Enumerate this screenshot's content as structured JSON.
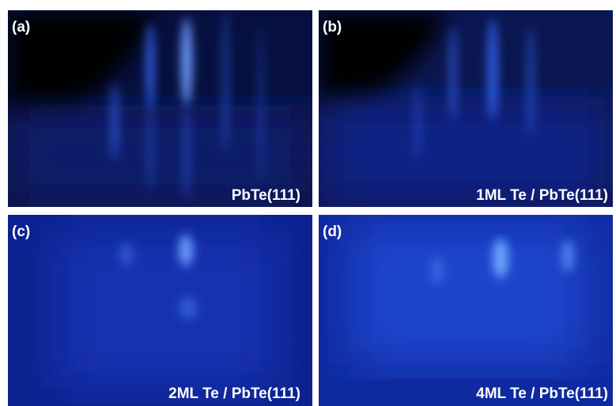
{
  "panels": [
    {
      "label": "(a)",
      "caption": "PbTe(111)"
    },
    {
      "label": "(b)",
      "caption": "1ML Te / PbTe(111)"
    },
    {
      "label": "(c)",
      "caption": "2ML Te / PbTe(111)"
    },
    {
      "label": "(d)",
      "caption": "4ML Te / PbTe(111)"
    }
  ]
}
